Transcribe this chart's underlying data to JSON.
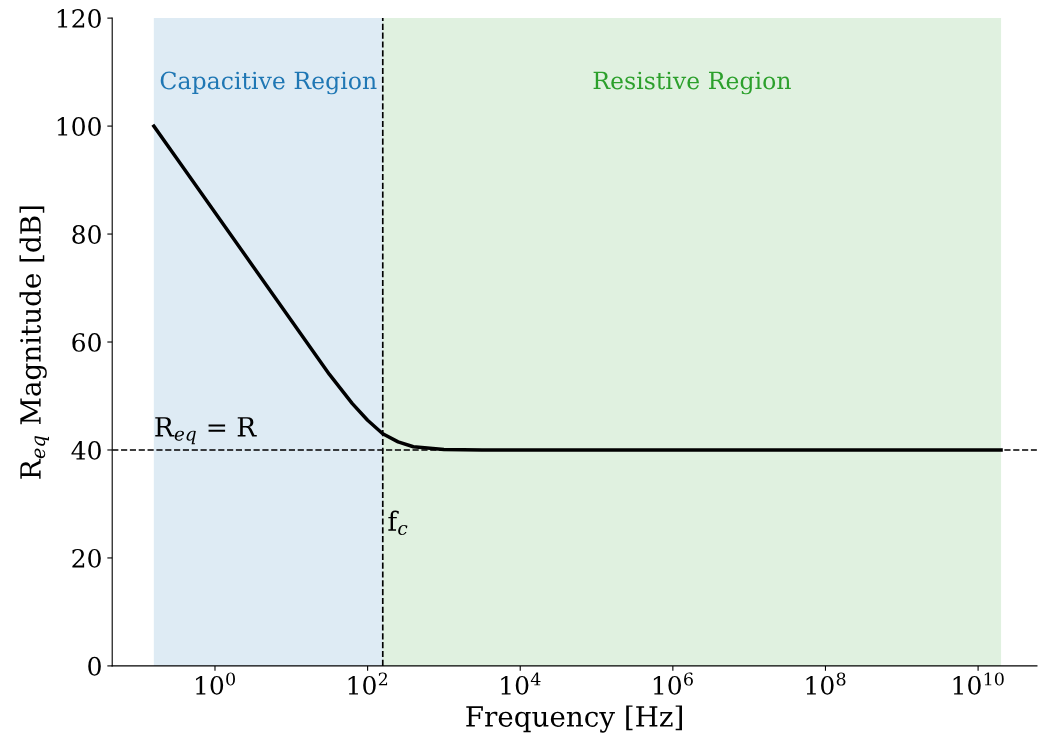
{
  "chart_data": {
    "type": "line",
    "xlabel": "Frequency [Hz]",
    "ylabel": "R$_{eq}$ Magnitude [dB]",
    "x": [
      0.158,
      0.316,
      1,
      3.16,
      10,
      31.6,
      63.1,
      100,
      158,
      251,
      398,
      1000,
      3160,
      10000,
      1000000,
      100000000,
      10000000000,
      20000000000
    ],
    "series": [
      {
        "color": "#000000",
        "values": [
          100,
          94,
          84,
          74,
          64,
          54,
          48.6,
          45.5,
          43,
          41.5,
          40.6,
          40.1,
          40,
          40,
          40,
          40,
          40,
          40
        ]
      }
    ],
    "log": "x",
    "xlim": [
      0.045,
      59000000000
    ],
    "ylim": [
      0,
      120
    ],
    "xticks": [
      {
        "value": 1,
        "label": "10$^{0}$"
      },
      {
        "value": 100,
        "label": "10$^{2}$"
      },
      {
        "value": 10000,
        "label": "10$^{4}$"
      },
      {
        "value": 1000000,
        "label": "10$^{6}$"
      },
      {
        "value": 100000000,
        "label": "10$^{8}$"
      },
      {
        "value": 10000000000,
        "label": "10$^{10}$"
      }
    ],
    "yticks": [
      0,
      20,
      40,
      60,
      80,
      100,
      120
    ],
    "bands": [
      {
        "axis": "x",
        "from": 0.158,
        "to": 158,
        "label": "Capacitive Region",
        "color": "#1f77b4"
      },
      {
        "axis": "x",
        "from": 158,
        "to": 20000000000,
        "label": "Resistive Region",
        "color": "#2ca02c"
      }
    ],
    "ref_lines": [
      {
        "axis": "x",
        "value": 158,
        "label": "f$_{c}$",
        "color": "#000000",
        "line_style": "dashed"
      },
      {
        "axis": "y",
        "value": 40,
        "label": "R$_{eq}$ = R",
        "color": "#000000",
        "line_style": "dashed"
      }
    ],
    "grid": false,
    "legend": false
  }
}
